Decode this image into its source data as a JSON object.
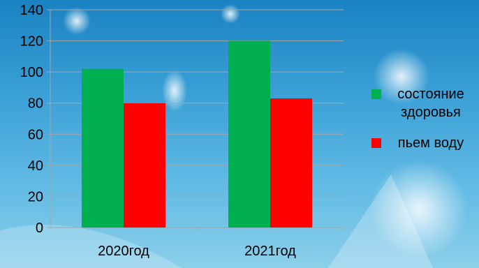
{
  "colors": {
    "series_1": "#00b050",
    "series_2": "#ff0000",
    "axis": "#a6a6a6",
    "grid": "#a6a6a6",
    "text": "#000000"
  },
  "chart_data": {
    "type": "bar",
    "categories": [
      "2020год",
      "2021год"
    ],
    "series": [
      {
        "name": "состояние здоровья",
        "values": [
          102,
          120
        ]
      },
      {
        "name": "пьем воду",
        "values": [
          80,
          83
        ]
      }
    ],
    "title": "",
    "xlabel": "",
    "ylabel": "",
    "ylim": [
      0,
      140
    ],
    "yticks": [
      "0",
      "20",
      "40",
      "60",
      "80",
      "100",
      "120",
      "140"
    ],
    "grid": true,
    "legend_position": "right"
  }
}
